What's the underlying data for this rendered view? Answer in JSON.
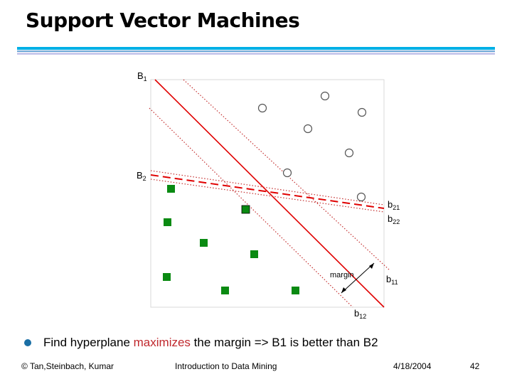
{
  "title": "Support Vector Machines",
  "diagram": {
    "labels": {
      "B1": "B",
      "B1_sub": "1",
      "B2": "B",
      "B2_sub": "2",
      "b21": "b",
      "b21_sub": "21",
      "b22": "b",
      "b22_sub": "22",
      "b11": "b",
      "b11_sub": "11",
      "b12": "b",
      "b12_sub": "12",
      "margin": "margin"
    },
    "colors": {
      "b1_line": "#e00000",
      "b2_line": "#e00000",
      "square_fill": "#0a8a12",
      "circle_stroke": "#555555",
      "margin_arrow": "#000000"
    }
  },
  "bullet": {
    "before": "Find hyperplane ",
    "highlight": "maximizes",
    "after": " the margin => B1 is better than B2",
    "highlight_color": "#c0282d"
  },
  "footer": {
    "copyright": "© Tan,Steinbach, Kumar",
    "course": "Introduction to Data Mining",
    "date": "4/18/2004",
    "page": "42"
  }
}
